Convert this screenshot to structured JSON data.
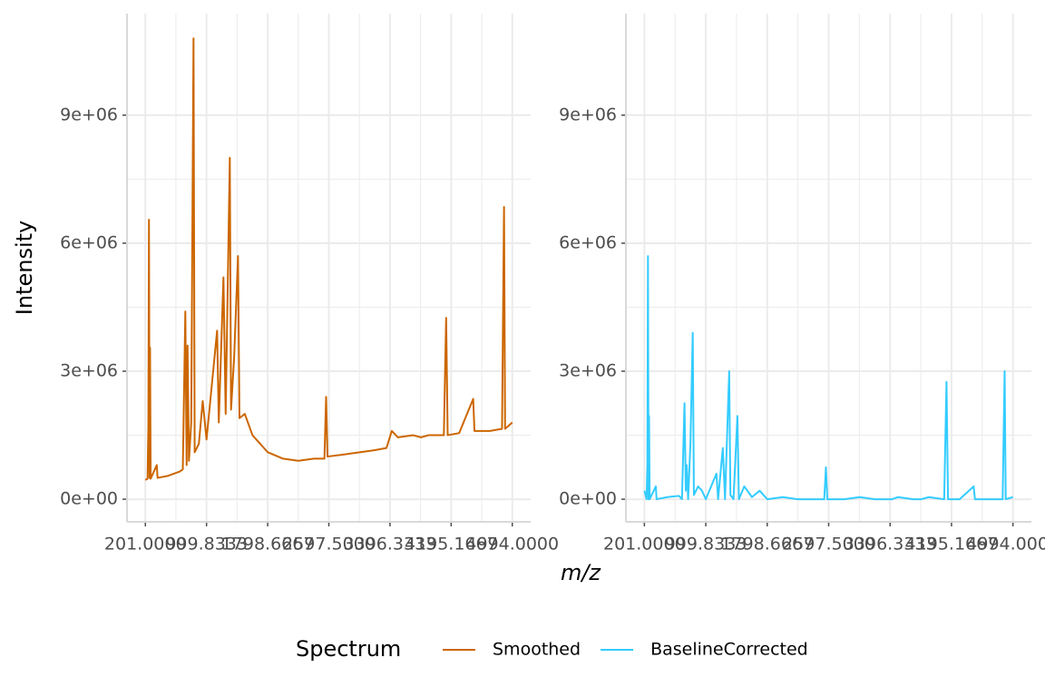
{
  "chart_data": {
    "type": "line",
    "x_label": "m/z",
    "y_label": "Intensity",
    "legend_title": "Spectrum",
    "legend_position": "bottom",
    "grid": true,
    "xlim": [
      -39,
      5234
    ],
    "ylim": [
      -530000,
      11380000
    ],
    "xticks": [
      {
        "value": 201,
        "label": "201.0000"
      },
      {
        "value": 999.8333,
        "label": "999.8333"
      },
      {
        "value": 1798.6667,
        "label": "1798.6667"
      },
      {
        "value": 2597.5,
        "label": "2597.5000"
      },
      {
        "value": 3396.3333,
        "label": "3396.3333"
      },
      {
        "value": 4195.1667,
        "label": "4195.1667"
      },
      {
        "value": 4994,
        "label": "4994.0000"
      }
    ],
    "yticks": [
      {
        "value": 0,
        "label": "0e+00"
      },
      {
        "value": 3000000,
        "label": "3e+06"
      },
      {
        "value": 6000000,
        "label": "6e+06"
      },
      {
        "value": 9000000,
        "label": "9e+06"
      }
    ],
    "x": [
      201,
      230,
      240,
      248,
      256,
      262,
      270,
      350,
      360,
      500,
      650,
      690,
      723,
      740,
      752,
      770,
      800,
      830,
      845,
      900,
      950,
      1000,
      1138,
      1160,
      1221,
      1250,
      1304,
      1320,
      1360,
      1411,
      1430,
      1500,
      1600,
      1700,
      1800,
      2000,
      2200,
      2400,
      2540,
      2562,
      2580,
      2800,
      3000,
      3200,
      3350,
      3420,
      3500,
      3700,
      3800,
      3900,
      4100,
      4130,
      4150,
      4300,
      4483,
      4500,
      4700,
      4860,
      4886,
      4900,
      4994
    ],
    "series": [
      {
        "name": "Smoothed",
        "color": "#cc6600",
        "values": [
          450000,
          480000,
          1700000,
          6550000,
          500000,
          3550000,
          480000,
          800000,
          500000,
          550000,
          650000,
          700000,
          4400000,
          800000,
          3600000,
          900000,
          1800000,
          10800000,
          1100000,
          1300000,
          2300000,
          1400000,
          3950000,
          1800000,
          5200000,
          2000000,
          8000000,
          2100000,
          3300000,
          5700000,
          1900000,
          2000000,
          1500000,
          1300000,
          1100000,
          950000,
          900000,
          950000,
          950000,
          2400000,
          1000000,
          1050000,
          1100000,
          1150000,
          1200000,
          1600000,
          1450000,
          1500000,
          1450000,
          1500000,
          1500000,
          4250000,
          1500000,
          1550000,
          2350000,
          1600000,
          1600000,
          1650000,
          6850000,
          1650000,
          1800000
        ]
      },
      {
        "name": "BaselineCorrected",
        "color": "#33ccff",
        "values": [
          200000,
          0,
          800000,
          5700000,
          0,
          1950000,
          0,
          300000,
          0,
          50000,
          80000,
          0,
          2250000,
          200000,
          800000,
          0,
          1300000,
          3900000,
          100000,
          300000,
          200000,
          0,
          600000,
          0,
          1200000,
          0,
          3000000,
          100000,
          0,
          1950000,
          0,
          300000,
          50000,
          200000,
          0,
          50000,
          0,
          0,
          0,
          750000,
          0,
          0,
          50000,
          0,
          0,
          0,
          50000,
          0,
          0,
          50000,
          0,
          2750000,
          0,
          0,
          300000,
          0,
          0,
          0,
          3000000,
          0,
          50000
        ]
      }
    ]
  }
}
